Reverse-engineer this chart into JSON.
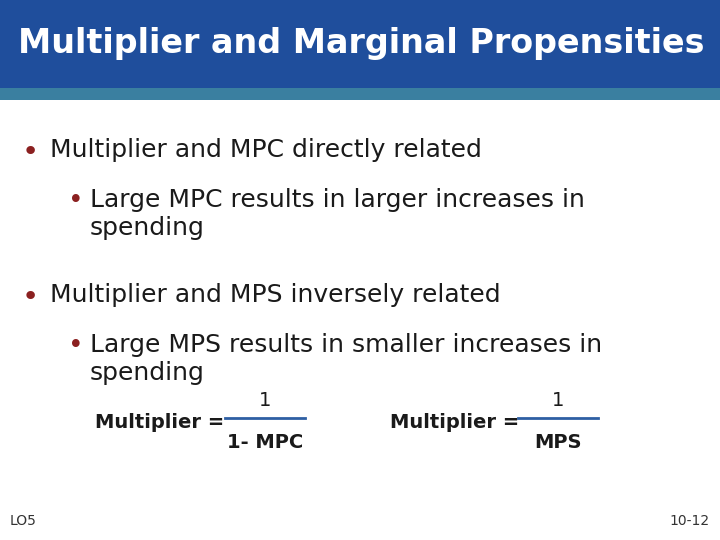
{
  "title": "Multiplier and Marginal Propensities",
  "title_bg_color": "#1F4E9C",
  "title_stripe_color": "#3A7FA0",
  "title_text_color": "#FFFFFF",
  "body_bg_color": "#FFFFFF",
  "bullet_color": "#8B2020",
  "body_text_color": "#1A1A1A",
  "footer_text_color": "#333333",
  "formula_text_color": "#1A1A1A",
  "formula_line_color": "#2E5FA3",
  "bullet1": "Multiplier and MPC directly related",
  "sub_bullet1_line1": "Large MPC results in larger increases in",
  "sub_bullet1_line2": "spending",
  "bullet2": "Multiplier and MPS inversely related",
  "sub_bullet2_line1": "Large MPS results in smaller increases in",
  "sub_bullet2_line2": "spending",
  "footer_left": "LO5",
  "footer_right": "10-12",
  "title_fontsize": 24,
  "bullet_fontsize": 18,
  "sub_bullet_fontsize": 18,
  "formula_fontsize": 14,
  "footer_fontsize": 10
}
